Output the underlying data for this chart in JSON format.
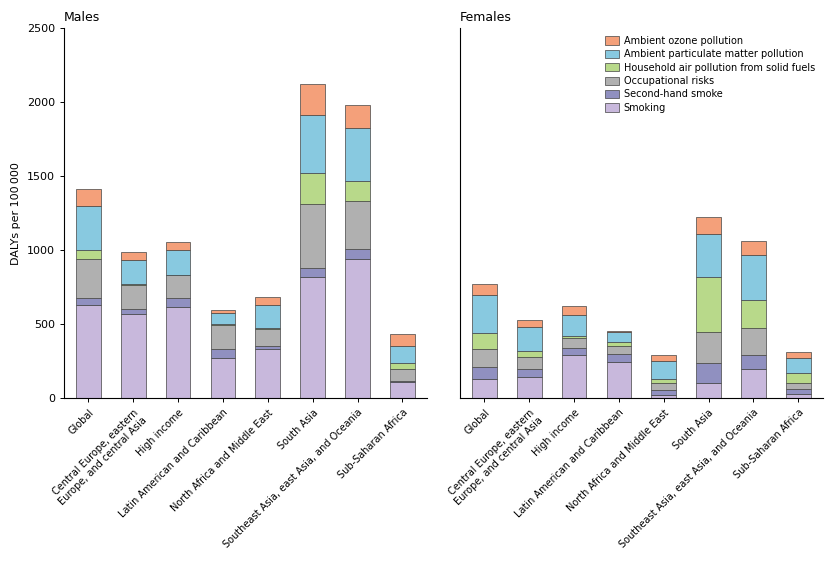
{
  "categories": [
    "Global",
    "Central Europe, eastern\nEurope, and central Asia",
    "High income",
    "Latin American and Caribbean",
    "North Africa and Middle East",
    "South Asia",
    "Southeast Asia, east Asia, and Oceania",
    "Sub-Saharan Africa"
  ],
  "legend_labels": [
    "Ambient ozone pollution",
    "Ambient particulate matter pollution",
    "Household air pollution from solid fuels",
    "Occupational risks",
    "Second-hand smoke",
    "Smoking"
  ],
  "colors": [
    "#F4A07A",
    "#88C9E0",
    "#B8D98A",
    "#B0B0B0",
    "#9090C0",
    "#C8B8DC"
  ],
  "stack_order": [
    "Smoking",
    "Second-hand smoke",
    "Occupational risks",
    "Household air pollution from solid fuels",
    "Ambient particulate matter pollution",
    "Ambient ozone pollution"
  ],
  "males": {
    "Smoking": [
      630,
      570,
      615,
      270,
      330,
      820,
      940,
      110
    ],
    "Second-hand smoke": [
      50,
      30,
      60,
      60,
      20,
      60,
      65,
      10
    ],
    "Occupational risks": [
      260,
      165,
      155,
      165,
      120,
      430,
      330,
      75
    ],
    "Household air pollution from solid fuels": [
      60,
      5,
      5,
      5,
      5,
      210,
      130,
      40
    ],
    "Ambient particulate matter pollution": [
      300,
      165,
      165,
      75,
      155,
      390,
      360,
      120
    ],
    "Ambient ozone pollution": [
      110,
      55,
      55,
      20,
      55,
      210,
      155,
      80
    ]
  },
  "females": {
    "Smoking": [
      130,
      145,
      295,
      245,
      25,
      100,
      195,
      30
    ],
    "Second-hand smoke": [
      80,
      55,
      45,
      55,
      30,
      135,
      100,
      30
    ],
    "Occupational risks": [
      120,
      80,
      65,
      50,
      50,
      215,
      180,
      45
    ],
    "Household air pollution from solid fuels": [
      110,
      40,
      15,
      30,
      25,
      370,
      190,
      65
    ],
    "Ambient particulate matter pollution": [
      260,
      160,
      145,
      65,
      120,
      290,
      300,
      100
    ],
    "Ambient ozone pollution": [
      75,
      50,
      55,
      10,
      40,
      115,
      100,
      45
    ]
  },
  "title_males": "Males",
  "title_females": "Females",
  "ylabel": "DALYs per 100 000",
  "ylim": [
    0,
    2500
  ],
  "yticks": [
    0,
    500,
    1000,
    1500,
    2000,
    2500
  ]
}
